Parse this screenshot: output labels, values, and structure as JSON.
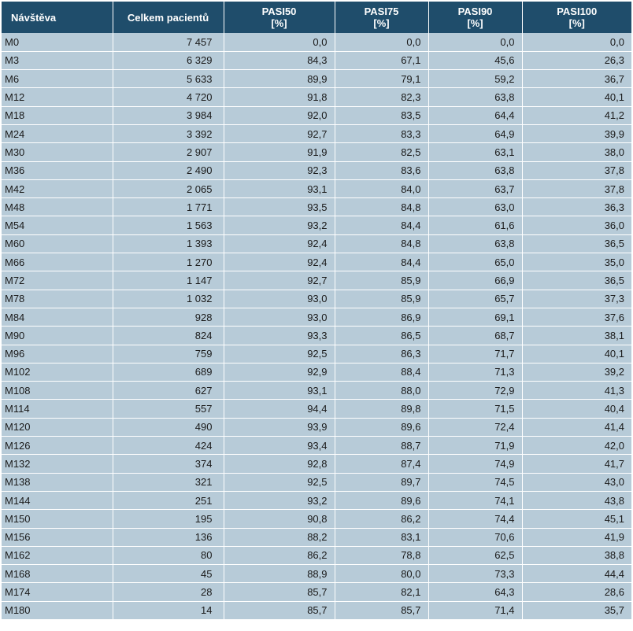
{
  "table": {
    "headers": [
      {
        "line1": "Návštěva",
        "line2": ""
      },
      {
        "line1": "Celkem pacientů",
        "line2": ""
      },
      {
        "line1": "PASI50",
        "line2": "[%]"
      },
      {
        "line1": "PASI75",
        "line2": "[%]"
      },
      {
        "line1": "PASI90",
        "line2": "[%]"
      },
      {
        "line1": "PASI100",
        "line2": "[%]"
      }
    ],
    "rows": [
      [
        "M0",
        "7 457",
        "0,0",
        "0,0",
        "0,0",
        "0,0"
      ],
      [
        "M3",
        "6 329",
        "84,3",
        "67,1",
        "45,6",
        "26,3"
      ],
      [
        "M6",
        "5 633",
        "89,9",
        "79,1",
        "59,2",
        "36,7"
      ],
      [
        "M12",
        "4 720",
        "91,8",
        "82,3",
        "63,8",
        "40,1"
      ],
      [
        "M18",
        "3 984",
        "92,0",
        "83,5",
        "64,4",
        "41,2"
      ],
      [
        "M24",
        "3 392",
        "92,7",
        "83,3",
        "64,9",
        "39,9"
      ],
      [
        "M30",
        "2 907",
        "91,9",
        "82,5",
        "63,1",
        "38,0"
      ],
      [
        "M36",
        "2 490",
        "92,3",
        "83,6",
        "63,8",
        "37,8"
      ],
      [
        "M42",
        "2 065",
        "93,1",
        "84,0",
        "63,7",
        "37,8"
      ],
      [
        "M48",
        "1 771",
        "93,5",
        "84,8",
        "63,0",
        "36,3"
      ],
      [
        "M54",
        "1 563",
        "93,2",
        "84,4",
        "61,6",
        "36,0"
      ],
      [
        "M60",
        "1 393",
        "92,4",
        "84,8",
        "63,8",
        "36,5"
      ],
      [
        "M66",
        "1 270",
        "92,4",
        "84,4",
        "65,0",
        "35,0"
      ],
      [
        "M72",
        "1 147",
        "92,7",
        "85,9",
        "66,9",
        "36,5"
      ],
      [
        "M78",
        "1 032",
        "93,0",
        "85,9",
        "65,7",
        "37,3"
      ],
      [
        "M84",
        "928",
        "93,0",
        "86,9",
        "69,1",
        "37,6"
      ],
      [
        "M90",
        "824",
        "93,3",
        "86,5",
        "68,7",
        "38,1"
      ],
      [
        "M96",
        "759",
        "92,5",
        "86,3",
        "71,7",
        "40,1"
      ],
      [
        "M102",
        "689",
        "92,9",
        "88,4",
        "71,3",
        "39,2"
      ],
      [
        "M108",
        "627",
        "93,1",
        "88,0",
        "72,9",
        "41,3"
      ],
      [
        "M114",
        "557",
        "94,4",
        "89,8",
        "71,5",
        "40,4"
      ],
      [
        "M120",
        "490",
        "93,9",
        "89,6",
        "72,4",
        "41,4"
      ],
      [
        "M126",
        "424",
        "93,4",
        "88,7",
        "71,9",
        "42,0"
      ],
      [
        "M132",
        "374",
        "92,8",
        "87,4",
        "74,9",
        "41,7"
      ],
      [
        "M138",
        "321",
        "92,5",
        "89,7",
        "74,5",
        "43,0"
      ],
      [
        "M144",
        "251",
        "93,2",
        "89,6",
        "74,1",
        "43,8"
      ],
      [
        "M150",
        "195",
        "90,8",
        "86,2",
        "74,4",
        "45,1"
      ],
      [
        "M156",
        "136",
        "88,2",
        "83,1",
        "70,6",
        "41,9"
      ],
      [
        "M162",
        "80",
        "86,2",
        "78,8",
        "62,5",
        "38,8"
      ],
      [
        "M168",
        "45",
        "88,9",
        "80,0",
        "73,3",
        "44,4"
      ],
      [
        "M174",
        "28",
        "85,7",
        "82,1",
        "64,3",
        "28,6"
      ],
      [
        "M180",
        "14",
        "85,7",
        "85,7",
        "71,4",
        "35,7"
      ]
    ]
  },
  "colors": {
    "header_bg": "#1f4d6b",
    "header_text": "#ffffff",
    "cell_bg": "#b7cbd8",
    "grid_lines": "#ffffff"
  }
}
